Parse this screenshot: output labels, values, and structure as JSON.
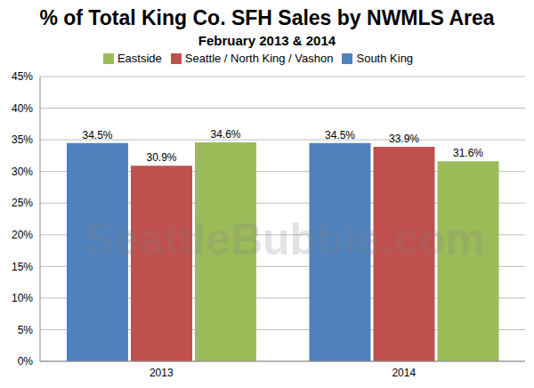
{
  "chart_data": {
    "type": "bar",
    "title": "% of Total King Co. SFH Sales by NWMLS Area",
    "subtitle": "February 2013 & 2014",
    "annotations": [
      "SeattleBubble.com"
    ],
    "categories": [
      "2013",
      "2014"
    ],
    "series": [
      {
        "name": "South King",
        "color": "#4f81bd",
        "values": [
          34.5,
          34.5
        ],
        "value_labels": [
          "34.5%",
          "34.5%"
        ]
      },
      {
        "name": "Seattle / North King / Vashon",
        "color": "#c0504d",
        "values": [
          30.9,
          33.9
        ],
        "value_labels": [
          "30.9%",
          "33.9%"
        ]
      },
      {
        "name": "Eastside",
        "color": "#9bbb59",
        "values": [
          34.6,
          31.6
        ],
        "value_labels": [
          "34.6%",
          "31.6%"
        ]
      }
    ],
    "ylim": [
      0,
      45
    ],
    "yticks": [
      {
        "value": 0,
        "label": "0%"
      },
      {
        "value": 5,
        "label": "5%"
      },
      {
        "value": 10,
        "label": "10%"
      },
      {
        "value": 15,
        "label": "15%"
      },
      {
        "value": 20,
        "label": "20%"
      },
      {
        "value": 25,
        "label": "25%"
      },
      {
        "value": 30,
        "label": "30%"
      },
      {
        "value": 35,
        "label": "35%"
      },
      {
        "value": 40,
        "label": "40%"
      },
      {
        "value": 45,
        "label": "45%"
      }
    ],
    "grid": true,
    "legend": "top",
    "data_labels": true
  }
}
